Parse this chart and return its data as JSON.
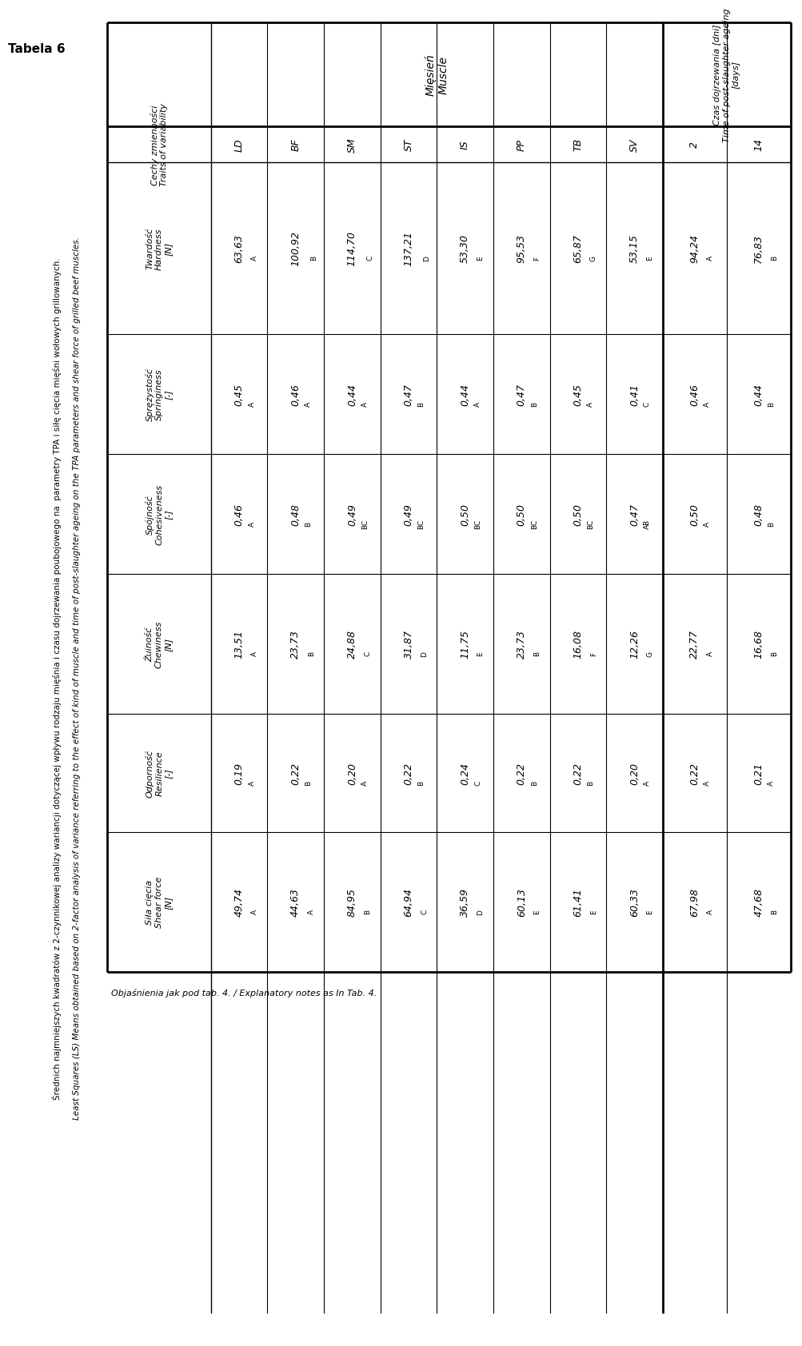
{
  "title": "Tabela 6",
  "subtitle_pl": "Średnich najmniejszych kwadratów z 2-czynnikowej analizy wariancji dotyczącej wpływu rodzaju mięśnia i czasu dojrzewania poubojowego na  parametry TPA i siłę cięcia mięśni wołowych grillowanych.",
  "subtitle_en": "Least Squares (LS) Means obtained based on 2-factor analysis of variance referring to the effect of kind of muscle and time of post-slaughter ageing on the TPA parameters and shear force of grilled beef muscles.",
  "footnote": "Objaśnienia jak pod tab. 4. / Explanatory notes as In Tab. 4.",
  "muscle_cols": [
    "LD",
    "BF",
    "SM",
    "ST",
    "IS",
    "PP",
    "TB",
    "SV"
  ],
  "time_cols": [
    "2",
    "14"
  ],
  "row_labels": [
    "Twardość\nHardness\n[N]",
    "Sprężystość\nSpringiness\n[-]",
    "Spójność\nCohesiveness\n[-]",
    "Żuiność\nChewiness\n[N]",
    "Odporność\nResilience\n[-]",
    "Siła cięcia\nShear force\n[N]"
  ],
  "data_values": [
    [
      "63,63",
      "100,92",
      "114,70",
      "137,21",
      "53,30",
      "95,53",
      "65,87",
      "53,15",
      "94,24",
      "76,83"
    ],
    [
      "0,45",
      "0,46",
      "0,44",
      "0,47",
      "0,44",
      "0,47",
      "0,45",
      "0,41",
      "0,46",
      "0,44"
    ],
    [
      "0,46",
      "0,48",
      "0,49",
      "0,49",
      "0,50",
      "0,50",
      "0,50",
      "0,47",
      "0,50",
      "0,48"
    ],
    [
      "13,51",
      "23,73",
      "24,88",
      "31,87",
      "11,75",
      "23,73",
      "16,08",
      "12,26",
      "22,77",
      "16,68"
    ],
    [
      "0,19",
      "0,22",
      "0,20",
      "0,22",
      "0,24",
      "0,22",
      "0,22",
      "0,20",
      "0,22",
      "0,21"
    ],
    [
      "49,74",
      "44,63",
      "84,95",
      "64,94",
      "36,59",
      "60,13",
      "61,41",
      "60,33",
      "67,98",
      "47,68"
    ]
  ],
  "data_superscripts": [
    [
      "A",
      "B",
      "C",
      "D",
      "E",
      "F",
      "G",
      "E",
      "A",
      "B"
    ],
    [
      "A",
      "A",
      "A",
      "B",
      "A",
      "B",
      "A",
      "C",
      "A",
      "B"
    ],
    [
      "A",
      "B",
      "BC",
      "BC",
      "BC",
      "BC",
      "BC",
      "AB",
      "A",
      "B"
    ],
    [
      "A",
      "B",
      "C",
      "D",
      "E",
      "B",
      "F",
      "G",
      "A",
      "B"
    ],
    [
      "A",
      "B",
      "A",
      "B",
      "C",
      "B",
      "B",
      "A",
      "A",
      "A"
    ],
    [
      "A",
      "A",
      "B",
      "C",
      "D",
      "E",
      "E",
      "E",
      "A",
      "B"
    ]
  ]
}
